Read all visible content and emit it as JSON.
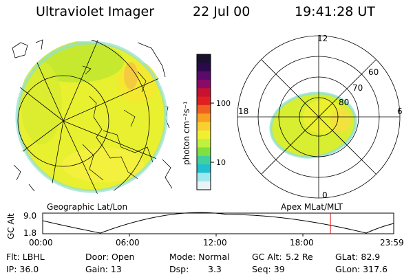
{
  "header": {
    "title": "Ultraviolet Imager",
    "date": "22 Jul 00",
    "time": "19:41:28 UT"
  },
  "colorbar": {
    "label": "photon cm⁻²s⁻¹",
    "ticks": [
      "100",
      "10"
    ],
    "colors_top_to_bottom": [
      "#1a1030",
      "#2a0a4a",
      "#5a0a6a",
      "#8a0a6a",
      "#c81030",
      "#e02020",
      "#f06020",
      "#f8a020",
      "#f8d030",
      "#f0f030",
      "#c0f040",
      "#80e040",
      "#40d0a0",
      "#20c0d0",
      "#a0e8f0",
      "#e8f4f8"
    ]
  },
  "left_map": {
    "caption": "Geographic Lat/Lon"
  },
  "right_map": {
    "caption": "Apex MLat/MLT",
    "mlt_labels": {
      "top": "12",
      "bottom": "0",
      "left": "18",
      "right": "6"
    },
    "lat_labels": [
      "60",
      "70",
      "80"
    ]
  },
  "altitude_plot": {
    "ylabel": "GC Alt",
    "yticks": [
      "9.0",
      "1.8"
    ],
    "xticks": [
      "00:00",
      "06:00",
      "12:00",
      "18:00",
      "23:59"
    ],
    "marker_color": "#e00000"
  },
  "footer": {
    "row1": {
      "flt": "Flt: LBHL",
      "door": "Door: Open",
      "mode": "Mode: Normal",
      "gcalt_label": "GC Alt:",
      "gcalt_value": "5.2 Re",
      "glat": "GLat: 82.9"
    },
    "row2": {
      "ip": "IP: 36.0",
      "gain": "Gain: 13",
      "dsp_label": "Dsp:",
      "dsp_value": "3.3",
      "seq": "Seq: 39",
      "glon": "GLon: 317.6"
    }
  }
}
